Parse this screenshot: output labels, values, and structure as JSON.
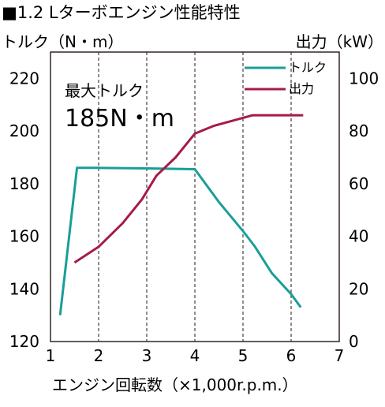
{
  "chart_data": {
    "type": "line",
    "title": "■1.2 Lターボエンジン性能特性",
    "xlabel": "エンジン回転数（×1,000r.p.m.）",
    "ylabel_left": "トルク（N・m）",
    "ylabel_right": "出力（kW）",
    "xlim": [
      1,
      7
    ],
    "ylim_left": [
      120,
      230
    ],
    "ylim_right": [
      0,
      110
    ],
    "x_ticks": [
      "1",
      "2",
      "3",
      "4",
      "5",
      "6",
      "7"
    ],
    "y_ticks_left": [
      "120",
      "140",
      "160",
      "180",
      "200",
      "220"
    ],
    "y_ticks_right": [
      "0",
      "20",
      "40",
      "60",
      "80",
      "100"
    ],
    "grid": "vertical dashed lines at x = 2, 3, 4, 5, 6",
    "legend_position": "top-right",
    "annotation": {
      "label": "最大トルク",
      "value": "185N・m"
    },
    "series": [
      {
        "name": "トルク",
        "axis": "left",
        "color": "#1a9e98",
        "points": [
          [
            1.2,
            130
          ],
          [
            1.55,
            186
          ],
          [
            2.0,
            186
          ],
          [
            3.0,
            185.8
          ],
          [
            4.0,
            185.5
          ],
          [
            4.5,
            173
          ],
          [
            5.0,
            162
          ],
          [
            5.25,
            156
          ],
          [
            5.6,
            146
          ],
          [
            6.0,
            138
          ],
          [
            6.2,
            133
          ]
        ]
      },
      {
        "name": "出力",
        "axis": "right",
        "color": "#a51c48",
        "points": [
          [
            1.5,
            30
          ],
          [
            2.0,
            36
          ],
          [
            2.5,
            45
          ],
          [
            2.9,
            54
          ],
          [
            3.2,
            63
          ],
          [
            3.6,
            70
          ],
          [
            4.0,
            79
          ],
          [
            4.4,
            82
          ],
          [
            5.0,
            85
          ],
          [
            5.2,
            86
          ],
          [
            6.0,
            86
          ],
          [
            6.25,
            86
          ]
        ]
      }
    ]
  }
}
